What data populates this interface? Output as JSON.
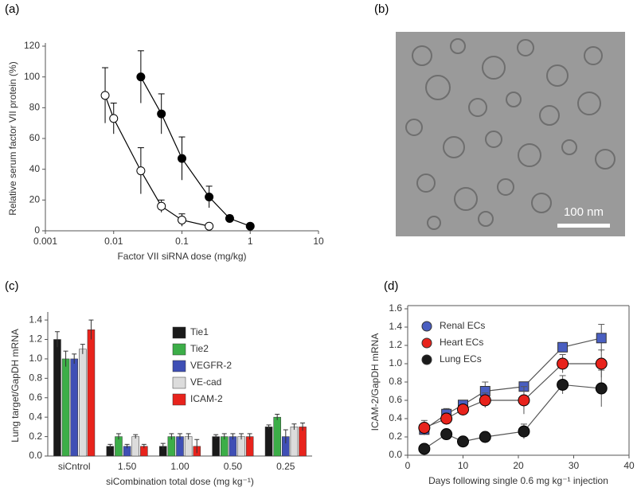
{
  "chart_data": [
    {
      "type": "line",
      "label": "(a)",
      "x_label": "Factor VII siRNA dose (mg/kg)",
      "y_label": "Relative serum factor VII protein (%)",
      "xscale": "log",
      "xlim": [
        0.001,
        10
      ],
      "xticks": [
        0.001,
        0.01,
        0.1,
        1,
        10
      ],
      "ylim": [
        0,
        120
      ],
      "yticks": [
        0,
        20,
        40,
        60,
        80,
        100,
        120
      ],
      "grid": false,
      "frame": false,
      "series": [
        {
          "color": "#ffffff",
          "marker": "circle",
          "x": [
            0.0075,
            0.01,
            0.025,
            0.05,
            0.1,
            0.25
          ],
          "values": [
            88,
            73,
            39,
            16,
            7,
            3
          ],
          "errors": [
            18,
            10,
            15,
            4,
            4,
            0
          ]
        },
        {
          "color": "#000000",
          "marker": "circle",
          "x": [
            0.025,
            0.05,
            0.1,
            0.25,
            0.5,
            1
          ],
          "values": [
            100,
            76,
            47,
            22,
            8,
            3
          ],
          "errors": [
            17,
            13,
            14,
            7,
            2,
            0
          ]
        }
      ]
    },
    {
      "type": "image",
      "label": "(b)",
      "scale_bar_label": "100 nm"
    },
    {
      "type": "bar",
      "label": "(c)",
      "x_label": "siCombination total dose (mg kg⁻¹)",
      "y_label": "Lung target/GapDH mRNA",
      "categories": [
        "siCntrol",
        "1.50",
        "1.00",
        "0.50",
        "0.25"
      ],
      "ylim": [
        0,
        1.45
      ],
      "yticks": [
        {
          "value": 0,
          "label": "0.0"
        },
        0.2,
        0.4,
        0.6,
        0.8,
        {
          "value": 1,
          "label": "1.0"
        },
        1.2,
        1.4
      ],
      "grid": false,
      "frame": false,
      "legend": "upper right",
      "series": [
        {
          "name": "Tie1",
          "color": "#1a1a1a",
          "values": [
            1.2,
            0.1,
            0.1,
            0.2,
            0.3
          ],
          "errors": [
            0.08,
            0.02,
            0.03,
            0.02,
            0.02
          ]
        },
        {
          "name": "Tie2",
          "color": "#3cae48",
          "values": [
            1.0,
            0.2,
            0.2,
            0.2,
            0.4
          ],
          "errors": [
            0.08,
            0.03,
            0.03,
            0.03,
            0.03
          ]
        },
        {
          "name": "VEGFR-2",
          "color": "#3f4fb5",
          "values": [
            1.0,
            0.1,
            0.2,
            0.2,
            0.2
          ],
          "errors": [
            0.05,
            0.02,
            0.03,
            0.03,
            0.07
          ]
        },
        {
          "name": "VE-cad",
          "color": "#dcdcdc",
          "values": [
            1.1,
            0.2,
            0.2,
            0.2,
            0.3
          ],
          "errors": [
            0.05,
            0.02,
            0.03,
            0.03,
            0.03
          ]
        },
        {
          "name": "ICAM-2",
          "color": "#e8231c",
          "values": [
            1.3,
            0.1,
            0.1,
            0.2,
            0.3
          ],
          "errors": [
            0.1,
            0.02,
            0.07,
            0.03,
            0.04
          ]
        }
      ]
    },
    {
      "type": "line",
      "label": "(d)",
      "x_label": "Days following single 0.6 mg kg⁻¹ injection",
      "y_label": "ICAM-2/GapDH mRNA",
      "x": [
        3,
        7,
        10,
        14,
        21,
        28,
        35
      ],
      "xlim": [
        0,
        40
      ],
      "xticks": [
        0,
        10,
        20,
        30,
        40
      ],
      "ylim": [
        0,
        1.6
      ],
      "yticks": [
        {
          "value": 0,
          "label": "0.0"
        },
        0.2,
        0.4,
        0.6,
        0.8,
        {
          "value": 1,
          "label": "1.0"
        },
        1.2,
        1.4,
        1.6
      ],
      "grid": false,
      "frame": true,
      "legend": "upper left",
      "series": [
        {
          "name": "Renal ECs",
          "color": "#4a5fc1",
          "marker": "square",
          "values": [
            0.28,
            0.45,
            0.55,
            0.7,
            0.75,
            1.18,
            1.28
          ],
          "errors": [
            0.05,
            0.06,
            0.04,
            0.1,
            0.05,
            0.05,
            0.15
          ]
        },
        {
          "name": "Heart ECs",
          "color": "#e8231c",
          "marker": "circle",
          "values": [
            0.3,
            0.4,
            0.5,
            0.6,
            0.6,
            1.0,
            1.0
          ],
          "errors": [
            0.08,
            0.06,
            0.05,
            0.08,
            0.15,
            0.1,
            0.15
          ]
        },
        {
          "name": "Lung ECs",
          "color": "#1a1a1a",
          "marker": "circle",
          "values": [
            0.07,
            0.23,
            0.15,
            0.2,
            0.26,
            0.77,
            0.73
          ],
          "errors": [
            0.02,
            0.05,
            0.03,
            0.03,
            0.08,
            0.1,
            0.2
          ]
        }
      ]
    }
  ]
}
